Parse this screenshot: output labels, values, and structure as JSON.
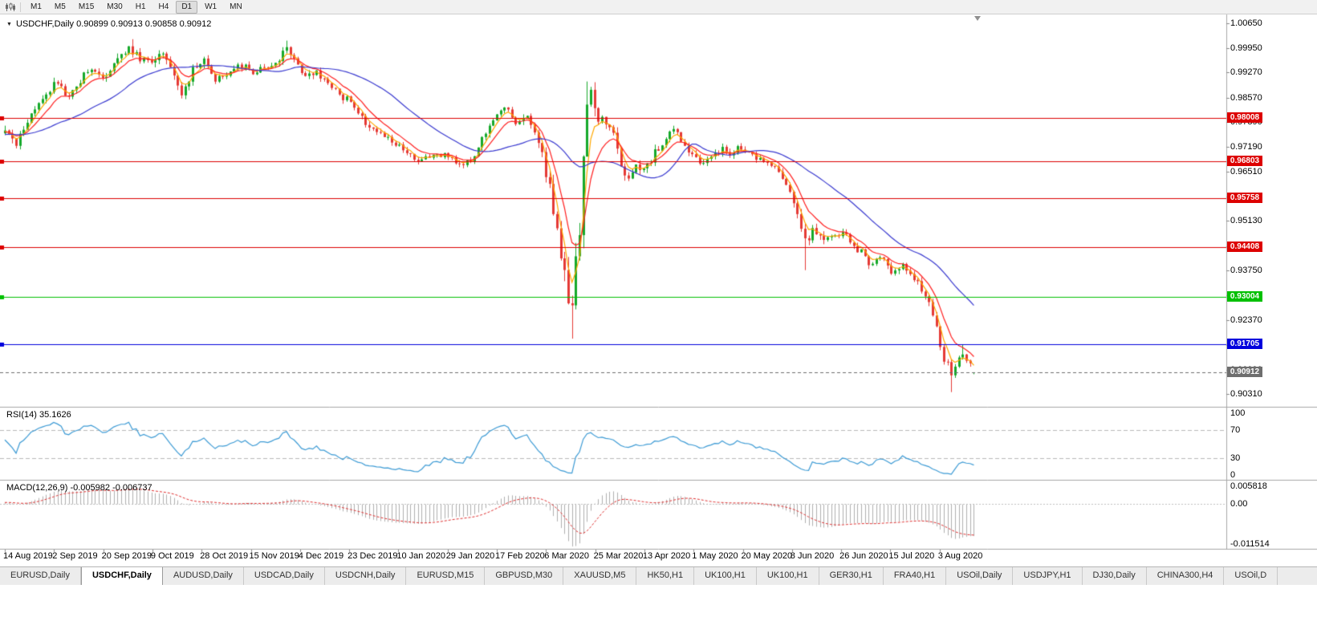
{
  "toolbar": {
    "timeframes": [
      {
        "label": "M1",
        "active": false
      },
      {
        "label": "M5",
        "active": false
      },
      {
        "label": "M15",
        "active": false
      },
      {
        "label": "M30",
        "active": false
      },
      {
        "label": "H1",
        "active": false
      },
      {
        "label": "H4",
        "active": false
      },
      {
        "label": "D1",
        "active": true
      },
      {
        "label": "W1",
        "active": false
      },
      {
        "label": "MN",
        "active": false
      }
    ]
  },
  "icons": {
    "chart_dropdown": "▼",
    "chart_shift_marker": "triangle-down",
    "chart_window": "candlestick-chart"
  },
  "chart": {
    "title": "USDCHF,Daily 0.90899 0.90913 0.90858 0.90912"
  },
  "price_axis": {
    "labels": [
      "1.00650",
      "0.99950",
      "0.99270",
      "0.98570",
      "0.97890",
      "0.97190",
      "0.96510",
      "0.95810",
      "0.95130",
      "0.94430",
      "0.93750",
      "0.93050",
      "0.92370",
      "0.91670",
      "0.90990",
      "0.90310"
    ]
  },
  "time_axis": {
    "labels": [
      "14 Aug 2019",
      "2 Sep 2019",
      "20 Sep 2019",
      "9 Oct 2019",
      "28 Oct 2019",
      "15 Nov 2019",
      "4 Dec 2019",
      "23 Dec 2019",
      "10 Jan 2020",
      "29 Jan 2020",
      "17 Feb 2020",
      "6 Mar 2020",
      "25 Mar 2020",
      "13 Apr 2020",
      "1 May 2020",
      "20 May 2020",
      "8 Jun 2020",
      "26 Jun 2020",
      "15 Jul 2020",
      "3 Aug 2020"
    ]
  },
  "indicators": {
    "rsi": {
      "label": "RSI(14) 35.1626",
      "period": 14,
      "last_value": 35.1626,
      "scale_labels": [
        "100",
        "70",
        "30",
        "0"
      ],
      "levels": [
        70,
        30
      ],
      "color": "#3d9bd5"
    },
    "macd": {
      "label": "MACD(12,26,9) -0.005982 -0.006737",
      "last_macd": -0.005982,
      "last_signal": -0.006737,
      "scale_labels": [
        "0.005818",
        "0.00",
        "-0.011514"
      ],
      "max": 0.005818,
      "min": -0.011514,
      "histogram_color": "#b0b0b0",
      "signal_color": "#e03030"
    }
  },
  "tabs": [
    {
      "label": "EURUSD,Daily",
      "active": false
    },
    {
      "label": "USDCHF,Daily",
      "active": true
    },
    {
      "label": "AUDUSD,Daily",
      "active": false
    },
    {
      "label": "USDCAD,Daily",
      "active": false
    },
    {
      "label": "USDCNH,Daily",
      "active": false
    },
    {
      "label": "EURUSD,M15",
      "active": false
    },
    {
      "label": "GBPUSD,M30",
      "active": false
    },
    {
      "label": "XAUUSD,M5",
      "active": false
    },
    {
      "label": "HK50,H1",
      "active": false
    },
    {
      "label": "UK100,H1",
      "active": false
    },
    {
      "label": "UK100,H1",
      "active": false
    },
    {
      "label": "GER30,H1",
      "active": false
    },
    {
      "label": "FRA40,H1",
      "active": false
    },
    {
      "label": "USOil,Daily",
      "active": false
    },
    {
      "label": "USDJPY,H1",
      "active": false
    },
    {
      "label": "DJ30,Daily",
      "active": false
    },
    {
      "label": "CHINA300,H4",
      "active": false
    },
    {
      "label": "USOil,D",
      "active": false
    }
  ],
  "chart_data": {
    "type": "candlestick",
    "symbol": "USDCHF",
    "period": "Daily",
    "current_bar": {
      "open": 0.90899,
      "high": 0.90913,
      "low": 0.90858,
      "close": 0.90912
    },
    "y_range": {
      "top": 1.0089,
      "bottom": 0.8995
    },
    "candle_up_color": "#15a92a",
    "candle_down_color": "#e53935",
    "levels": [
      {
        "label": "0.98008",
        "price": 0.98008,
        "color": "#dd0000",
        "style": "solid"
      },
      {
        "label": "0.96803",
        "price": 0.96803,
        "color": "#dd0000",
        "style": "solid"
      },
      {
        "label": "0.95758",
        "price": 0.95758,
        "color": "#dd0000",
        "style": "solid"
      },
      {
        "label": "0.94408",
        "price": 0.94408,
        "color": "#dd0000",
        "style": "solid"
      },
      {
        "label": "0.93004",
        "price": 0.93004,
        "color": "#00c000",
        "style": "solid"
      },
      {
        "label": "0.91705",
        "price": 0.91705,
        "color": "#0000dd",
        "style": "solid"
      },
      {
        "label": "0.90912",
        "price": 0.90912,
        "color": "#6e6e6e",
        "style": "dashed"
      }
    ],
    "moving_averages": [
      {
        "type": "ema",
        "period": 4,
        "color": "#ffa800"
      },
      {
        "type": "ema",
        "period": 9,
        "color": "#ff2020"
      },
      {
        "type": "sma",
        "period": 30,
        "color": "#3a3ad0"
      }
    ],
    "candle_count": 259,
    "price_waypoints": [
      [
        -30,
        0.9748,
        1.0
      ],
      [
        0,
        0.9762,
        1.1
      ],
      [
        3,
        0.9734,
        1.1
      ],
      [
        8,
        0.9826,
        1.0
      ],
      [
        13,
        0.9896,
        1.0
      ],
      [
        17,
        0.9864,
        0.9
      ],
      [
        22,
        0.9934,
        0.9
      ],
      [
        26,
        0.991,
        0.9
      ],
      [
        30,
        0.9968,
        1.0
      ],
      [
        33,
        0.9996,
        1.0
      ],
      [
        36,
        0.9962,
        1.0
      ],
      [
        39,
        0.9954,
        1.0
      ],
      [
        42,
        0.9986,
        1.0
      ],
      [
        47,
        0.987,
        1.0
      ],
      [
        50,
        0.9932,
        0.9
      ],
      [
        53,
        0.9965,
        0.9
      ],
      [
        56,
        0.991,
        0.9
      ],
      [
        60,
        0.993,
        0.8
      ],
      [
        64,
        0.995,
        0.8
      ],
      [
        66,
        0.992,
        0.8
      ],
      [
        70,
        0.9946,
        0.8
      ],
      [
        73,
        0.996,
        0.9
      ],
      [
        75,
        0.9998,
        1.0
      ],
      [
        78,
        0.9954,
        1.0
      ],
      [
        80,
        0.9906,
        1.0
      ],
      [
        83,
        0.993,
        0.9
      ],
      [
        86,
        0.9898,
        0.8
      ],
      [
        89,
        0.9864,
        0.8
      ],
      [
        92,
        0.9846,
        0.8
      ],
      [
        96,
        0.979,
        0.8
      ],
      [
        100,
        0.9756,
        0.8
      ],
      [
        103,
        0.9738,
        0.7
      ],
      [
        106,
        0.9714,
        0.7
      ],
      [
        110,
        0.9672,
        0.7
      ],
      [
        114,
        0.9702,
        0.7
      ],
      [
        118,
        0.9696,
        0.7
      ],
      [
        122,
        0.9666,
        0.7
      ],
      [
        125,
        0.9694,
        0.7
      ],
      [
        127,
        0.9746,
        0.8
      ],
      [
        130,
        0.9788,
        0.8
      ],
      [
        133,
        0.9834,
        0.8
      ],
      [
        136,
        0.978,
        0.8
      ],
      [
        139,
        0.9802,
        0.9
      ],
      [
        141,
        0.9764,
        1.2
      ],
      [
        143,
        0.969,
        1.6
      ],
      [
        145,
        0.9596,
        2.0
      ],
      [
        147,
        0.9472,
        2.4
      ],
      [
        149,
        0.9346,
        2.8
      ],
      [
        151,
        0.9276,
        3.0
      ],
      [
        153,
        0.9506,
        3.0
      ],
      [
        155,
        0.9842,
        2.6
      ],
      [
        156,
        0.986,
        2.0
      ],
      [
        158,
        0.9802,
        1.6
      ],
      [
        160,
        0.979,
        1.4
      ],
      [
        162,
        0.977,
        1.3
      ],
      [
        165,
        0.9626,
        1.3
      ],
      [
        168,
        0.966,
        1.1
      ],
      [
        170,
        0.965,
        1.0
      ],
      [
        173,
        0.9702,
        1.0
      ],
      [
        176,
        0.9746,
        1.0
      ],
      [
        178,
        0.9774,
        1.0
      ],
      [
        180,
        0.974,
        0.9
      ],
      [
        182,
        0.9714,
        0.9
      ],
      [
        184,
        0.9694,
        0.9
      ],
      [
        186,
        0.967,
        0.8
      ],
      [
        189,
        0.9698,
        0.8
      ],
      [
        191,
        0.9712,
        0.8
      ],
      [
        193,
        0.97,
        0.8
      ],
      [
        195,
        0.9716,
        0.8
      ],
      [
        198,
        0.9702,
        0.8
      ],
      [
        201,
        0.9688,
        0.8
      ],
      [
        204,
        0.9668,
        0.8
      ],
      [
        206,
        0.9648,
        0.8
      ],
      [
        208,
        0.9612,
        0.9
      ],
      [
        211,
        0.9526,
        1.3
      ],
      [
        213,
        0.945,
        1.3
      ],
      [
        215,
        0.9486,
        1.0
      ],
      [
        218,
        0.9454,
        0.9
      ],
      [
        221,
        0.9472,
        0.9
      ],
      [
        223,
        0.9478,
        0.8
      ],
      [
        226,
        0.9444,
        0.8
      ],
      [
        229,
        0.9414,
        0.9
      ],
      [
        231,
        0.9384,
        0.9
      ],
      [
        233,
        0.942,
        0.8
      ],
      [
        236,
        0.937,
        0.8
      ],
      [
        239,
        0.939,
        0.8
      ],
      [
        242,
        0.935,
        0.8
      ],
      [
        245,
        0.931,
        0.9
      ],
      [
        247,
        0.9244,
        1.1
      ],
      [
        249,
        0.9174,
        1.2
      ],
      [
        250,
        0.913,
        1.1
      ],
      [
        251,
        0.912,
        1.0
      ],
      [
        252,
        0.9084,
        1.0
      ],
      [
        253,
        0.911,
        0.9
      ],
      [
        254,
        0.913,
        0.9
      ],
      [
        255,
        0.9144,
        0.9
      ],
      [
        256,
        0.913,
        0.8
      ],
      [
        257,
        0.911,
        0.8
      ],
      [
        258,
        0.90912,
        0.7
      ]
    ],
    "overrides": [
      {
        "i": 34,
        "h": 1.002
      },
      {
        "i": 75,
        "h": 1.0016
      },
      {
        "i": 151,
        "l": 0.9185
      },
      {
        "i": 155,
        "h": 0.9902
      },
      {
        "i": 213,
        "l": 0.9376
      },
      {
        "i": 252,
        "l": 0.9036
      },
      {
        "i": 255,
        "h": 0.9168
      },
      {
        "i": 258,
        "o": 0.90899,
        "h": 0.90913,
        "l": 0.90858,
        "c": 0.90912
      }
    ]
  }
}
